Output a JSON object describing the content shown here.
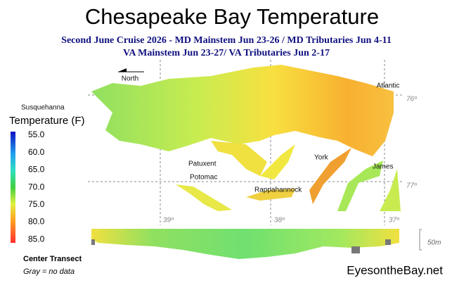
{
  "header": {
    "title": "Chesapeake Bay Temperature",
    "subtitle_lines": [
      "Second June Cruise 2026 - MD Mainstem Jun 23-26 / MD Tributaries Jun 4-11",
      "VA Mainstem Jun 23-27/  VA Tributaries Jun 2-17"
    ]
  },
  "map": {
    "labels": [
      "North",
      "Susquehanna",
      "Atlantic",
      "Patuxent",
      "York",
      "James",
      "Potomac",
      "Rappahannock"
    ],
    "grid_labels": [
      "76º",
      "77º",
      "39º",
      "38º",
      "37º"
    ]
  },
  "legend": {
    "title": "Temperature (F)",
    "ticks": [
      "55.0",
      "60.0",
      "65.0",
      "70.0",
      "75.0",
      "80.0",
      "85.0"
    ]
  },
  "transect": {
    "title": "Center Transect",
    "note": "Gray = no data",
    "depth_label": "50m"
  },
  "footer": {
    "credit": "EyesontheBay.net"
  }
}
